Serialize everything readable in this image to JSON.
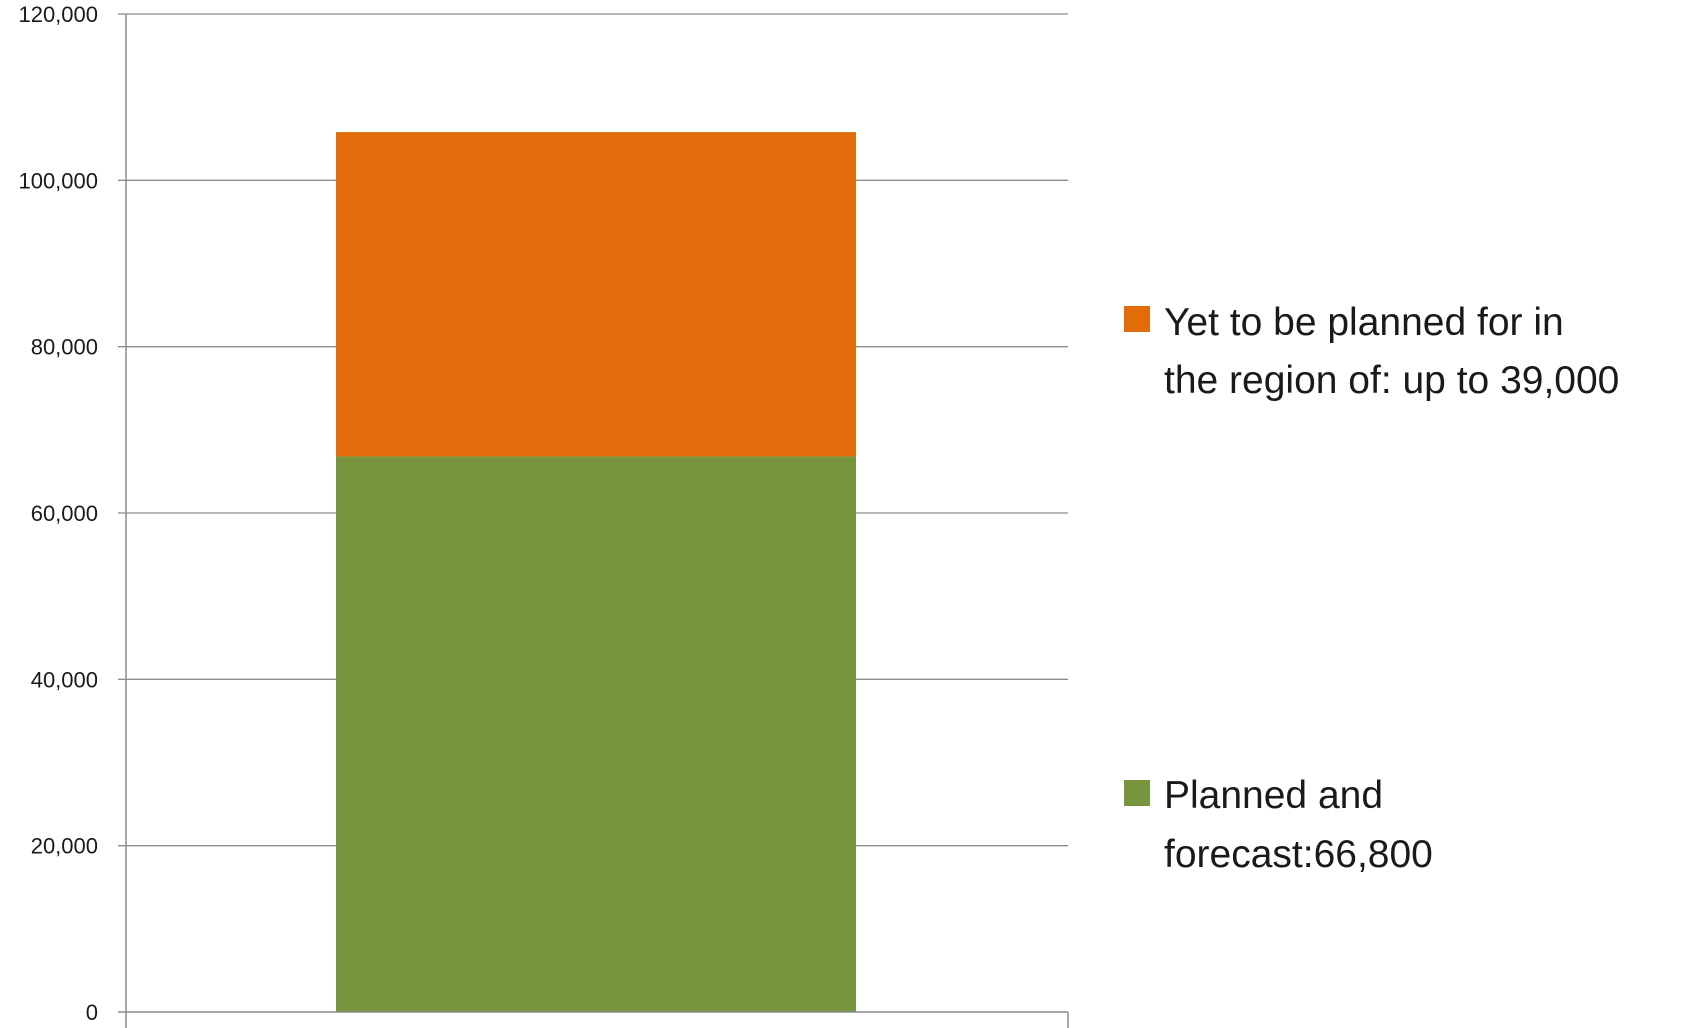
{
  "chart_data": {
    "type": "bar",
    "stacked": true,
    "categories": [
      ""
    ],
    "series": [
      {
        "name": "Planned and forecast:66,800",
        "values": [
          66800
        ],
        "color": "#77953D"
      },
      {
        "name": "Yet to be planned for in the region of: up to 39,000",
        "values": [
          39000
        ],
        "color": "#E36C0A"
      }
    ],
    "legend_lines": {
      "yet": [
        "Yet to be planned for in",
        "the region of: up to 39,000"
      ],
      "planned": [
        "Planned and",
        "forecast:66,800"
      ]
    },
    "ylim": [
      0,
      120000
    ],
    "yticks": [
      0,
      20000,
      40000,
      60000,
      80000,
      100000,
      120000
    ],
    "ytick_labels": [
      "0",
      "20,000",
      "40,000",
      "60,000",
      "80,000",
      "100,000",
      "120,000"
    ],
    "grid": true,
    "legend_position": "right",
    "title": "",
    "xlabel": "",
    "ylabel": ""
  }
}
